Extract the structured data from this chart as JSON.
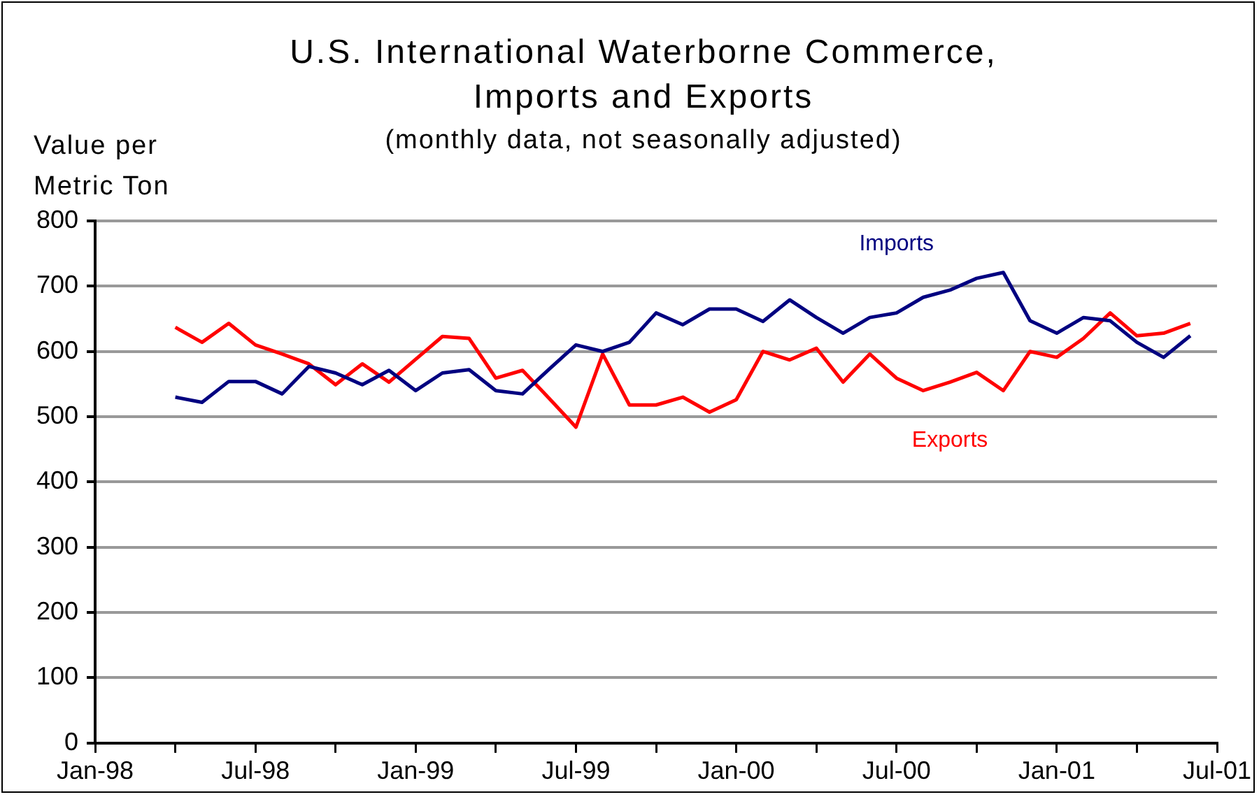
{
  "chart_data": {
    "type": "line",
    "title": "U.S. International Waterborne Commerce,\nImports and Exports",
    "subtitle": "(monthly data, not seasonally adjusted)",
    "ylabel": "Value per\nMetric Ton",
    "x": [
      "1998-04",
      "1998-05",
      "1998-06",
      "1998-07",
      "1998-08",
      "1998-09",
      "1998-10",
      "1998-11",
      "1998-12",
      "1999-01",
      "1999-02",
      "1999-03",
      "1999-04",
      "1999-05",
      "1999-06",
      "1999-07",
      "1999-08",
      "1999-09",
      "1999-10",
      "1999-11",
      "1999-12",
      "2000-01",
      "2000-02",
      "2000-03",
      "2000-04",
      "2000-05",
      "2000-06",
      "2000-07",
      "2000-08",
      "2000-09",
      "2000-10",
      "2000-11",
      "2000-12",
      "2001-01",
      "2001-02",
      "2001-03",
      "2001-04",
      "2001-05",
      "2001-06"
    ],
    "series": [
      {
        "name": "Imports",
        "color": "#000080",
        "values": [
          530,
          522,
          554,
          554,
          535,
          577,
          567,
          549,
          571,
          540,
          567,
          572,
          540,
          535,
          573,
          610,
          600,
          614,
          659,
          641,
          665,
          665,
          646,
          679,
          652,
          628,
          652,
          659,
          683,
          694,
          712,
          721,
          647,
          628,
          652,
          647,
          614,
          591,
          624
        ]
      },
      {
        "name": "Exports",
        "color": "#ff0000",
        "values": [
          637,
          614,
          643,
          610,
          596,
          581,
          549,
          581,
          553,
          588,
          623,
          620,
          559,
          571,
          528,
          484,
          596,
          518,
          518,
          530,
          507,
          526,
          600,
          587,
          605,
          553,
          596,
          559,
          540,
          553,
          568,
          540,
          600,
          591,
          620,
          659,
          624,
          628,
          643
        ]
      }
    ],
    "xlim": [
      "1998-01",
      "2001-07"
    ],
    "xticks": [
      {
        "value": "1998-01",
        "label": "Jan-98"
      },
      {
        "value": "1998-04",
        "label": null
      },
      {
        "value": "1998-07",
        "label": "Jul-98"
      },
      {
        "value": "1998-10",
        "label": null
      },
      {
        "value": "1999-01",
        "label": "Jan-99"
      },
      {
        "value": "1999-04",
        "label": null
      },
      {
        "value": "1999-07",
        "label": "Jul-99"
      },
      {
        "value": "1999-10",
        "label": null
      },
      {
        "value": "2000-01",
        "label": "Jan-00"
      },
      {
        "value": "2000-04",
        "label": null
      },
      {
        "value": "2000-07",
        "label": "Jul-00"
      },
      {
        "value": "2000-10",
        "label": null
      },
      {
        "value": "2001-01",
        "label": "Jan-01"
      },
      {
        "value": "2001-04",
        "label": null
      },
      {
        "value": "2001-07",
        "label": "Jul-01"
      }
    ],
    "ylim": [
      0,
      800
    ],
    "yticks": [
      0,
      100,
      200,
      300,
      400,
      500,
      600,
      700,
      800
    ],
    "grid": "y",
    "legend": false,
    "marker": "none",
    "line_style": "solid"
  }
}
